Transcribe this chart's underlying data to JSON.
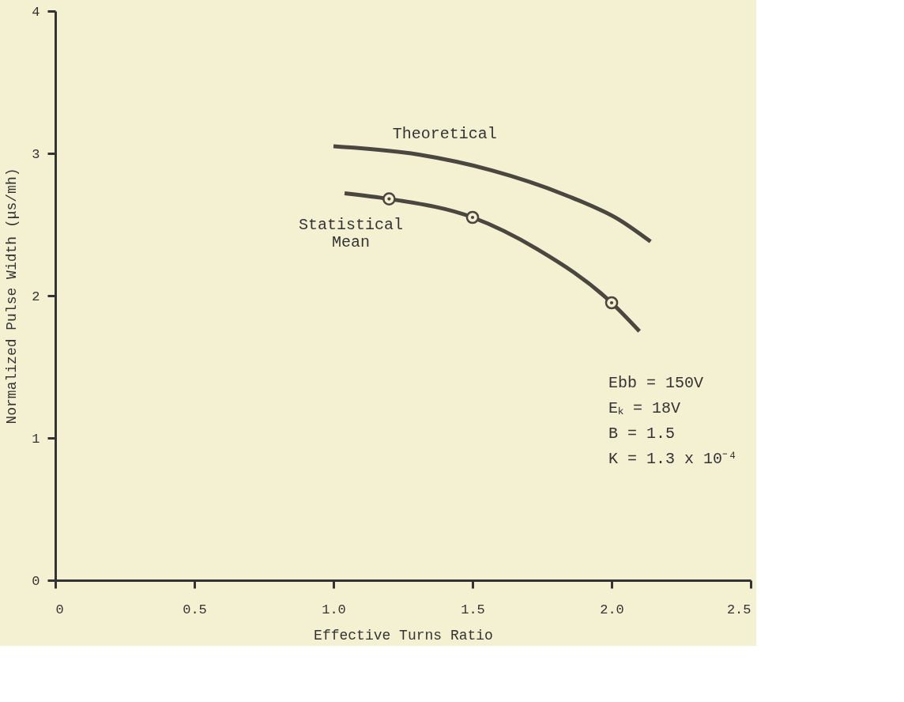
{
  "chart_data": {
    "type": "line",
    "xlabel": "Effective Turns Ratio",
    "ylabel": "Normalized Pulse Width (μs/mh)",
    "xlim": [
      0,
      2.5
    ],
    "xticks": [
      0,
      0.5,
      {
        "value": 1,
        "label": "1.0"
      },
      1.5,
      {
        "value": 2,
        "label": "2.0"
      },
      2.5
    ],
    "ylim": [
      0,
      4
    ],
    "yticks": [
      0,
      1,
      2,
      3,
      4
    ],
    "grid": false,
    "line_style": "solid",
    "series": [
      {
        "color": "#4a4640",
        "x": [
          1.0,
          1.31,
          1.57,
          1.83,
          2.03,
          2.14
        ],
        "values": [
          3.05,
          2.99,
          2.88,
          2.71,
          2.53,
          2.38
        ]
      },
      {
        "color": "#4a4640",
        "x": [
          1.04,
          1.2,
          1.5,
          1.73,
          2.0,
          2.1
        ],
        "values": [
          2.72,
          2.68,
          2.55,
          2.33,
          1.95,
          1.75
        ]
      },
      {
        "type": "scatter",
        "marker": "circle",
        "color": "#4a4640",
        "x": [
          1.2,
          1.5,
          2.0
        ],
        "values": [
          2.68,
          2.55,
          1.95
        ]
      }
    ],
    "annotations": [
      "Theoretical",
      "Statistical Mean",
      "Ebb = 150V",
      "Eₖ = 18V",
      "B = 1.5",
      "K = 1.3 x 10⁻⁴"
    ]
  }
}
